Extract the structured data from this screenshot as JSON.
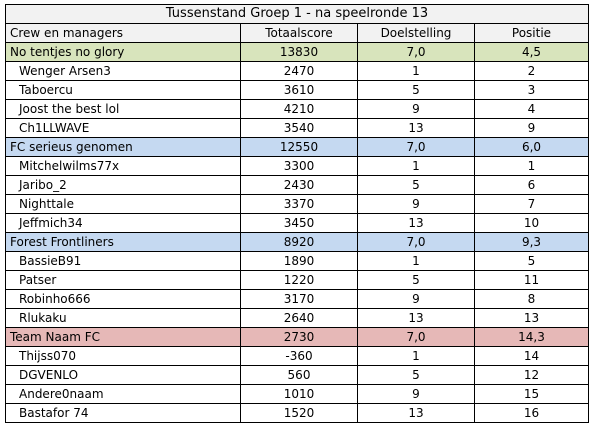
{
  "title": "Tussenstand Groep 1 - na speelronde 13",
  "headers": [
    "Crew en managers",
    "Totaalscore",
    "Doelstelling",
    "Positie"
  ],
  "teams": [
    {
      "name": "No tentjes no glory",
      "score": "13830",
      "doel": "7,0",
      "positie": "4,5",
      "color": "#d8e4bc",
      "managers": [
        {
          "name": "Wenger Arsen3",
          "score": "2470",
          "doel": "1",
          "positie": "2"
        },
        {
          "name": "Taboercu",
          "score": "3610",
          "doel": "5",
          "positie": "3"
        },
        {
          "name": "Joost the best lol",
          "score": "4210",
          "doel": "9",
          "positie": "4"
        },
        {
          "name": "Ch1LLWAVE",
          "score": "3540",
          "doel": "13",
          "positie": "9"
        }
      ]
    },
    {
      "name": "FC serieus genomen",
      "score": "12550",
      "doel": "7,0",
      "positie": "6,0",
      "color": "#c5d9f1",
      "managers": [
        {
          "name": "Mitchelwilms77x",
          "score": "3300",
          "doel": "1",
          "positie": "1"
        },
        {
          "name": "Jaribo_2",
          "score": "2430",
          "doel": "5",
          "positie": "6"
        },
        {
          "name": "Nighttale",
          "score": "3370",
          "doel": "9",
          "positie": "7"
        },
        {
          "name": "Jeffmich34",
          "score": "3450",
          "doel": "13",
          "positie": "10"
        }
      ]
    },
    {
      "name": "Forest Frontliners",
      "score": "8920",
      "doel": "7,0",
      "positie": "9,3",
      "color": "#c5d9f1",
      "managers": [
        {
          "name": "BassieB91",
          "score": "1890",
          "doel": "1",
          "positie": "5"
        },
        {
          "name": "Patser",
          "score": "1220",
          "doel": "5",
          "positie": "11"
        },
        {
          "name": "Robinho666",
          "score": "3170",
          "doel": "9",
          "positie": "8"
        },
        {
          "name": "Rlukaku",
          "score": "2640",
          "doel": "13",
          "positie": "13"
        }
      ]
    },
    {
      "name": "Team Naam FC",
      "score": "2730",
      "doel": "7,0",
      "positie": "14,3",
      "color": "#e6b8b7",
      "managers": [
        {
          "name": "Thijss070",
          "score": "-360",
          "doel": "1",
          "positie": "14"
        },
        {
          "name": "DGVENLO",
          "score": "560",
          "doel": "5",
          "positie": "12"
        },
        {
          "name": "Andere0naam",
          "score": "1010",
          "doel": "9",
          "positie": "15"
        },
        {
          "name": "Bastafor 74",
          "score": "1520",
          "doel": "13",
          "positie": "16"
        }
      ]
    }
  ]
}
